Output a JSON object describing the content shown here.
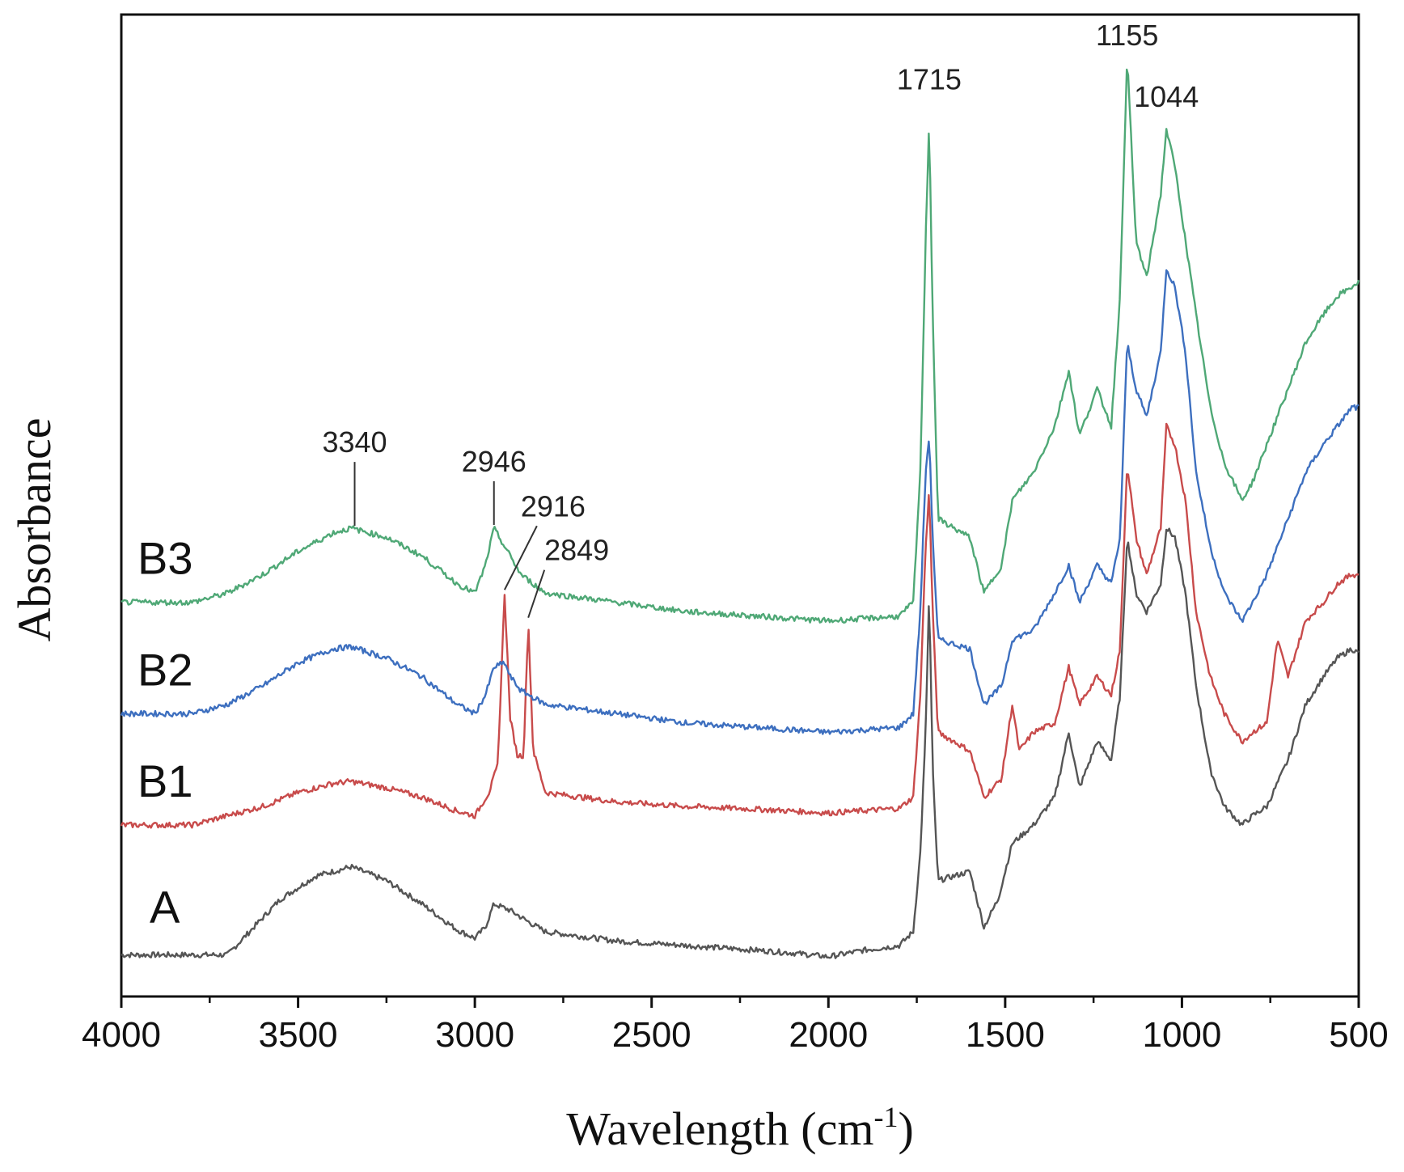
{
  "chart_data": {
    "type": "line",
    "title": "",
    "xlabel": "Wavelength (cm",
    "xlabel_superscript": "-1",
    "xlabel_close": ")",
    "ylabel": "Absorbance",
    "xlim": [
      4000,
      500
    ],
    "ylim": [
      0,
      1
    ],
    "x_ticks": [
      4000,
      3500,
      3000,
      2500,
      2000,
      1500,
      1000,
      500
    ],
    "x_tick_labels": [
      "4000",
      "3500",
      "3000",
      "2500",
      "2000",
      "1500",
      "1000",
      "500"
    ],
    "legend": "inline-left",
    "grid": false,
    "series": [
      {
        "name": "A",
        "color": "#555555",
        "points": [
          [
            4000,
            0.03
          ],
          [
            3800,
            0.03
          ],
          [
            3700,
            0.03
          ],
          [
            3650,
            0.05
          ],
          [
            3550,
            0.09
          ],
          [
            3450,
            0.115
          ],
          [
            3350,
            0.125
          ],
          [
            3250,
            0.11
          ],
          [
            3150,
            0.085
          ],
          [
            3050,
            0.057
          ],
          [
            3000,
            0.048
          ],
          [
            2970,
            0.06
          ],
          [
            2946,
            0.085
          ],
          [
            2900,
            0.078
          ],
          [
            2850,
            0.066
          ],
          [
            2800,
            0.055
          ],
          [
            2600,
            0.045
          ],
          [
            2400,
            0.04
          ],
          [
            2200,
            0.035
          ],
          [
            2100,
            0.032
          ],
          [
            2000,
            0.028
          ],
          [
            1900,
            0.035
          ],
          [
            1800,
            0.04
          ],
          [
            1760,
            0.055
          ],
          [
            1740,
            0.14
          ],
          [
            1725,
            0.27
          ],
          [
            1715,
            0.42
          ],
          [
            1705,
            0.23
          ],
          [
            1690,
            0.11
          ],
          [
            1600,
            0.12
          ],
          [
            1560,
            0.06
          ],
          [
            1520,
            0.09
          ],
          [
            1480,
            0.15
          ],
          [
            1420,
            0.17
          ],
          [
            1360,
            0.2
          ],
          [
            1320,
            0.27
          ],
          [
            1290,
            0.21
          ],
          [
            1240,
            0.26
          ],
          [
            1200,
            0.24
          ],
          [
            1175,
            0.31
          ],
          [
            1155,
            0.48
          ],
          [
            1130,
            0.42
          ],
          [
            1100,
            0.4
          ],
          [
            1060,
            0.43
          ],
          [
            1044,
            0.49
          ],
          [
            1020,
            0.48
          ],
          [
            990,
            0.42
          ],
          [
            960,
            0.32
          ],
          [
            920,
            0.23
          ],
          [
            880,
            0.19
          ],
          [
            830,
            0.17
          ],
          [
            800,
            0.18
          ],
          [
            760,
            0.19
          ],
          [
            700,
            0.24
          ],
          [
            650,
            0.3
          ],
          [
            600,
            0.33
          ],
          [
            560,
            0.35
          ],
          [
            520,
            0.36
          ],
          [
            500,
            0.355
          ]
        ]
      },
      {
        "name": "B1",
        "color": "#c84b4b",
        "points": [
          [
            4000,
            0.17
          ],
          [
            3800,
            0.17
          ],
          [
            3700,
            0.18
          ],
          [
            3600,
            0.19
          ],
          [
            3500,
            0.205
          ],
          [
            3400,
            0.215
          ],
          [
            3350,
            0.217
          ],
          [
            3250,
            0.21
          ],
          [
            3150,
            0.2
          ],
          [
            3050,
            0.185
          ],
          [
            3000,
            0.18
          ],
          [
            2960,
            0.205
          ],
          [
            2935,
            0.235
          ],
          [
            2916,
            0.42
          ],
          [
            2900,
            0.285
          ],
          [
            2880,
            0.245
          ],
          [
            2862,
            0.245
          ],
          [
            2849,
            0.39
          ],
          [
            2835,
            0.25
          ],
          [
            2800,
            0.205
          ],
          [
            2600,
            0.195
          ],
          [
            2400,
            0.19
          ],
          [
            2200,
            0.187
          ],
          [
            2000,
            0.183
          ],
          [
            1800,
            0.188
          ],
          [
            1760,
            0.2
          ],
          [
            1740,
            0.31
          ],
          [
            1725,
            0.47
          ],
          [
            1715,
            0.53
          ],
          [
            1705,
            0.4
          ],
          [
            1690,
            0.27
          ],
          [
            1600,
            0.25
          ],
          [
            1560,
            0.2
          ],
          [
            1510,
            0.22
          ],
          [
            1480,
            0.3
          ],
          [
            1460,
            0.25
          ],
          [
            1420,
            0.27
          ],
          [
            1360,
            0.28
          ],
          [
            1320,
            0.34
          ],
          [
            1290,
            0.3
          ],
          [
            1240,
            0.33
          ],
          [
            1200,
            0.31
          ],
          [
            1175,
            0.36
          ],
          [
            1155,
            0.56
          ],
          [
            1130,
            0.48
          ],
          [
            1100,
            0.44
          ],
          [
            1060,
            0.49
          ],
          [
            1044,
            0.6
          ],
          [
            1020,
            0.58
          ],
          [
            990,
            0.52
          ],
          [
            960,
            0.4
          ],
          [
            920,
            0.33
          ],
          [
            880,
            0.29
          ],
          [
            830,
            0.26
          ],
          [
            800,
            0.27
          ],
          [
            760,
            0.28
          ],
          [
            730,
            0.37
          ],
          [
            700,
            0.33
          ],
          [
            650,
            0.39
          ],
          [
            600,
            0.41
          ],
          [
            560,
            0.43
          ],
          [
            520,
            0.44
          ],
          [
            500,
            0.44
          ]
        ]
      },
      {
        "name": "B2",
        "color": "#3d6fbf",
        "points": [
          [
            4000,
            0.29
          ],
          [
            3800,
            0.29
          ],
          [
            3700,
            0.3
          ],
          [
            3600,
            0.32
          ],
          [
            3500,
            0.345
          ],
          [
            3400,
            0.36
          ],
          [
            3350,
            0.362
          ],
          [
            3250,
            0.35
          ],
          [
            3150,
            0.33
          ],
          [
            3050,
            0.3
          ],
          [
            3000,
            0.29
          ],
          [
            2970,
            0.31
          ],
          [
            2946,
            0.34
          ],
          [
            2916,
            0.345
          ],
          [
            2900,
            0.33
          ],
          [
            2870,
            0.315
          ],
          [
            2800,
            0.3
          ],
          [
            2600,
            0.29
          ],
          [
            2400,
            0.28
          ],
          [
            2200,
            0.275
          ],
          [
            2000,
            0.27
          ],
          [
            1800,
            0.275
          ],
          [
            1760,
            0.29
          ],
          [
            1740,
            0.4
          ],
          [
            1725,
            0.55
          ],
          [
            1715,
            0.59
          ],
          [
            1705,
            0.48
          ],
          [
            1690,
            0.37
          ],
          [
            1600,
            0.36
          ],
          [
            1560,
            0.3
          ],
          [
            1510,
            0.32
          ],
          [
            1480,
            0.37
          ],
          [
            1420,
            0.38
          ],
          [
            1360,
            0.42
          ],
          [
            1320,
            0.45
          ],
          [
            1290,
            0.41
          ],
          [
            1240,
            0.45
          ],
          [
            1200,
            0.43
          ],
          [
            1175,
            0.48
          ],
          [
            1155,
            0.69
          ],
          [
            1130,
            0.64
          ],
          [
            1100,
            0.61
          ],
          [
            1060,
            0.68
          ],
          [
            1044,
            0.77
          ],
          [
            1020,
            0.75
          ],
          [
            990,
            0.68
          ],
          [
            960,
            0.55
          ],
          [
            920,
            0.47
          ],
          [
            880,
            0.42
          ],
          [
            830,
            0.39
          ],
          [
            800,
            0.41
          ],
          [
            760,
            0.44
          ],
          [
            700,
            0.5
          ],
          [
            650,
            0.55
          ],
          [
            600,
            0.58
          ],
          [
            560,
            0.6
          ],
          [
            520,
            0.62
          ],
          [
            500,
            0.62
          ]
        ]
      },
      {
        "name": "B3",
        "color": "#4fa876",
        "points": [
          [
            4000,
            0.41
          ],
          [
            3800,
            0.41
          ],
          [
            3700,
            0.42
          ],
          [
            3600,
            0.44
          ],
          [
            3500,
            0.465
          ],
          [
            3400,
            0.485
          ],
          [
            3350,
            0.49
          ],
          [
            3250,
            0.48
          ],
          [
            3150,
            0.46
          ],
          [
            3050,
            0.43
          ],
          [
            3000,
            0.42
          ],
          [
            2970,
            0.45
          ],
          [
            2946,
            0.49
          ],
          [
            2916,
            0.47
          ],
          [
            2900,
            0.46
          ],
          [
            2870,
            0.44
          ],
          [
            2800,
            0.42
          ],
          [
            2600,
            0.41
          ],
          [
            2400,
            0.4
          ],
          [
            2200,
            0.395
          ],
          [
            2000,
            0.39
          ],
          [
            1800,
            0.395
          ],
          [
            1760,
            0.41
          ],
          [
            1740,
            0.55
          ],
          [
            1725,
            0.8
          ],
          [
            1715,
            0.93
          ],
          [
            1705,
            0.72
          ],
          [
            1690,
            0.5
          ],
          [
            1600,
            0.48
          ],
          [
            1560,
            0.42
          ],
          [
            1510,
            0.45
          ],
          [
            1480,
            0.52
          ],
          [
            1420,
            0.55
          ],
          [
            1360,
            0.6
          ],
          [
            1320,
            0.66
          ],
          [
            1290,
            0.59
          ],
          [
            1240,
            0.64
          ],
          [
            1200,
            0.6
          ],
          [
            1175,
            0.74
          ],
          [
            1155,
            1.0
          ],
          [
            1130,
            0.8
          ],
          [
            1100,
            0.76
          ],
          [
            1060,
            0.85
          ],
          [
            1044,
            0.92
          ],
          [
            1020,
            0.88
          ],
          [
            990,
            0.8
          ],
          [
            960,
            0.72
          ],
          [
            920,
            0.62
          ],
          [
            880,
            0.56
          ],
          [
            830,
            0.52
          ],
          [
            800,
            0.54
          ],
          [
            760,
            0.58
          ],
          [
            700,
            0.64
          ],
          [
            650,
            0.69
          ],
          [
            600,
            0.72
          ],
          [
            560,
            0.74
          ],
          [
            520,
            0.75
          ],
          [
            500,
            0.755
          ]
        ]
      }
    ],
    "series_labels": [
      {
        "text": "A",
        "series": "A"
      },
      {
        "text": "B1",
        "series": "B1"
      },
      {
        "text": "B2",
        "series": "B2"
      },
      {
        "text": "B3",
        "series": "B3"
      }
    ],
    "annotations": [
      {
        "text": "3340",
        "x": 3340,
        "series": "B3",
        "leader": true
      },
      {
        "text": "2946",
        "x": 2946,
        "series": "B3",
        "leader": true
      },
      {
        "text": "2916",
        "x": 2916,
        "series": "B1",
        "leader": true
      },
      {
        "text": "2849",
        "x": 2849,
        "series": "B1",
        "leader": true
      },
      {
        "text": "1715",
        "x": 1715,
        "series": "B3",
        "leader": false
      },
      {
        "text": "1155",
        "x": 1155,
        "series": "B3",
        "leader": false
      },
      {
        "text": "1044",
        "x": 1044,
        "series": "B3",
        "leader": false
      }
    ]
  }
}
